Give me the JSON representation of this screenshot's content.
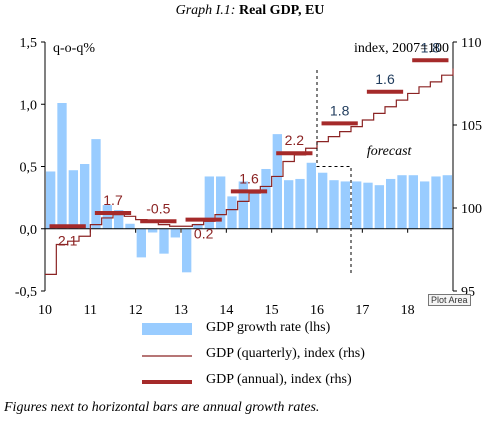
{
  "title": {
    "prefix": "Graph I.1:",
    "main": "Real GDP, EU"
  },
  "chart_data": {
    "type": "bar",
    "left_unit_label": "q-o-q%",
    "right_unit_label": "index, 2007=100",
    "forecast_label": "forecast",
    "ylim_left": [
      -0.5,
      1.5
    ],
    "yticks_left": [
      "-0,5",
      "0,0",
      "0,5",
      "1,0",
      "1,5"
    ],
    "ylim_right": [
      95,
      110
    ],
    "yticks_right": [
      "95",
      "100",
      "105",
      "110"
    ],
    "xlim": [
      10,
      19
    ],
    "xticks": [
      "10",
      "11",
      "12",
      "13",
      "14",
      "15",
      "16",
      "17",
      "18"
    ],
    "series": [
      {
        "name": "GDP growth rate (lhs)",
        "kind": "bar",
        "axis": "left",
        "color": "#99ccff",
        "x": [
          10.0,
          10.25,
          10.5,
          10.75,
          11.0,
          11.25,
          11.5,
          11.75,
          12.0,
          12.25,
          12.5,
          12.75,
          13.0,
          13.25,
          13.5,
          13.75,
          14.0,
          14.25,
          14.5,
          14.75,
          15.0,
          15.25,
          15.5,
          15.75,
          16.0,
          16.25,
          16.5,
          16.75,
          17.0,
          17.25,
          17.5,
          17.75,
          18.0,
          18.25,
          18.5,
          18.75
        ],
        "values": [
          0.46,
          1.01,
          0.47,
          0.52,
          0.72,
          0.19,
          0.15,
          0.04,
          -0.23,
          -0.03,
          -0.2,
          -0.07,
          -0.35,
          0.04,
          0.42,
          0.42,
          0.26,
          0.38,
          0.3,
          0.48,
          0.76,
          0.39,
          0.4,
          0.53,
          0.45,
          0.39,
          0.38,
          0.38,
          0.37,
          0.35,
          0.4,
          0.43,
          0.43,
          0.38,
          0.42,
          0.43
        ]
      },
      {
        "name": "GDP (quarterly), index (rhs)",
        "kind": "step",
        "axis": "right",
        "color": "#8b2323",
        "x": [
          10.0,
          10.25,
          10.5,
          10.75,
          11.0,
          11.25,
          11.5,
          11.75,
          12.0,
          12.25,
          12.5,
          12.75,
          13.0,
          13.25,
          13.5,
          13.75,
          14.0,
          14.25,
          14.5,
          14.75,
          15.0,
          15.25,
          15.5,
          15.75,
          16.0,
          16.25,
          16.5,
          16.75,
          17.0,
          17.25,
          17.5,
          17.75,
          18.0,
          18.25,
          18.5,
          18.75,
          19.0
        ],
        "values": [
          96.0,
          97.8,
          98.0,
          98.3,
          99.0,
          99.4,
          99.6,
          99.5,
          99.3,
          99.2,
          99.0,
          98.9,
          98.9,
          99.0,
          99.2,
          99.6,
          99.9,
          100.4,
          100.9,
          101.3,
          101.9,
          102.8,
          103.2,
          103.6,
          104.0,
          104.3,
          104.6,
          104.9,
          105.3,
          105.7,
          106.1,
          106.5,
          106.9,
          107.3,
          107.6,
          108.0,
          108.4
        ]
      },
      {
        "name": "GDP (annual), index (rhs)",
        "kind": "segments",
        "axis": "right",
        "color": "#a52a2a",
        "years": [
          10,
          11,
          12,
          13,
          14,
          15,
          16,
          17,
          18
        ],
        "values": [
          98.9,
          99.7,
          99.2,
          99.3,
          101.0,
          103.3,
          105.1,
          107.0,
          108.9
        ],
        "growth_labels": [
          "2.1",
          "1.7",
          "-0.5",
          "0.2",
          "1.6",
          "2.2",
          "1.8",
          "1.6",
          "1.8"
        ]
      }
    ]
  },
  "legend": {
    "items": [
      {
        "label": "GDP growth rate (lhs)"
      },
      {
        "label": "GDP (quarterly), index (rhs)"
      },
      {
        "label": "GDP (annual), index (rhs)"
      }
    ]
  },
  "plot_area_tag": "Plot Area",
  "footnote": "Figures next to horizontal bars are annual growth rates."
}
